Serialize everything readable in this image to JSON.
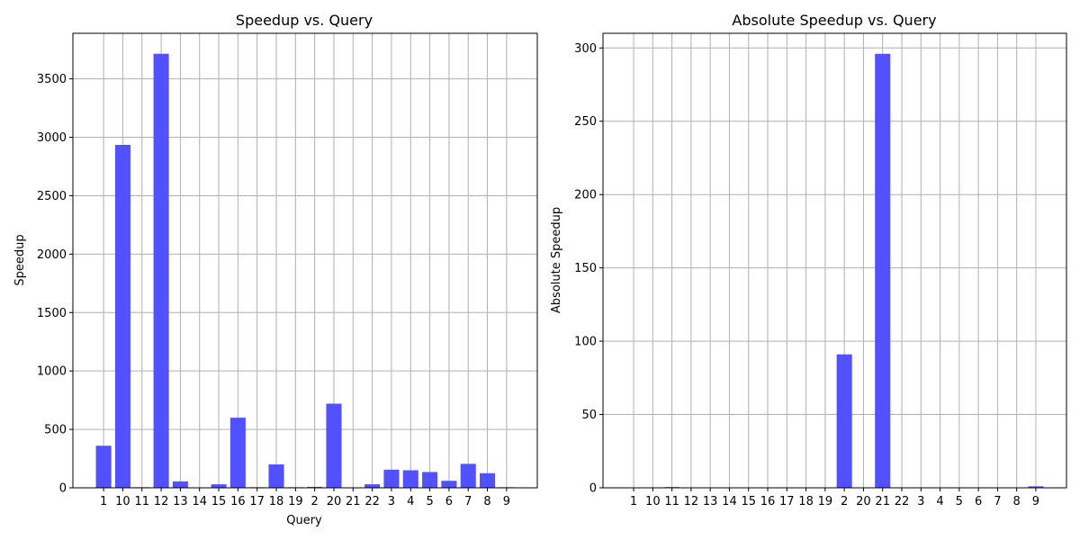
{
  "chart_data": [
    {
      "type": "bar",
      "title": "Speedup vs. Query",
      "xlabel": "Query",
      "ylabel": "Speedup",
      "categories": [
        "1",
        "10",
        "11",
        "12",
        "13",
        "14",
        "15",
        "16",
        "17",
        "18",
        "19",
        "2",
        "20",
        "21",
        "22",
        "3",
        "4",
        "5",
        "6",
        "7",
        "8",
        "9"
      ],
      "values": [
        360,
        2935,
        5,
        3715,
        55,
        2,
        30,
        600,
        5,
        200,
        5,
        8,
        720,
        2,
        30,
        155,
        150,
        135,
        60,
        205,
        125,
        5
      ],
      "ylim": [
        0,
        3890
      ],
      "yticks": [
        0,
        500,
        1000,
        1500,
        2000,
        2500,
        3000,
        3500
      ],
      "grid": true,
      "bar_color": "#4b4bff"
    },
    {
      "type": "bar",
      "title": "Absolute Speedup vs. Query",
      "xlabel": "",
      "ylabel": "Absolute Speedup",
      "categories": [
        "1",
        "10",
        "11",
        "12",
        "13",
        "14",
        "15",
        "16",
        "17",
        "18",
        "19",
        "2",
        "20",
        "21",
        "22",
        "3",
        "4",
        "5",
        "6",
        "7",
        "8",
        "9"
      ],
      "values": [
        0,
        0,
        0.5,
        0,
        0,
        0,
        0,
        0,
        0,
        0,
        0,
        91,
        0,
        296,
        0,
        0,
        0,
        0,
        0,
        0,
        0,
        1
      ],
      "ylim": [
        0,
        310
      ],
      "yticks": [
        0,
        50,
        100,
        150,
        200,
        250,
        300
      ],
      "grid": true,
      "bar_color": "#4b4bff"
    }
  ]
}
